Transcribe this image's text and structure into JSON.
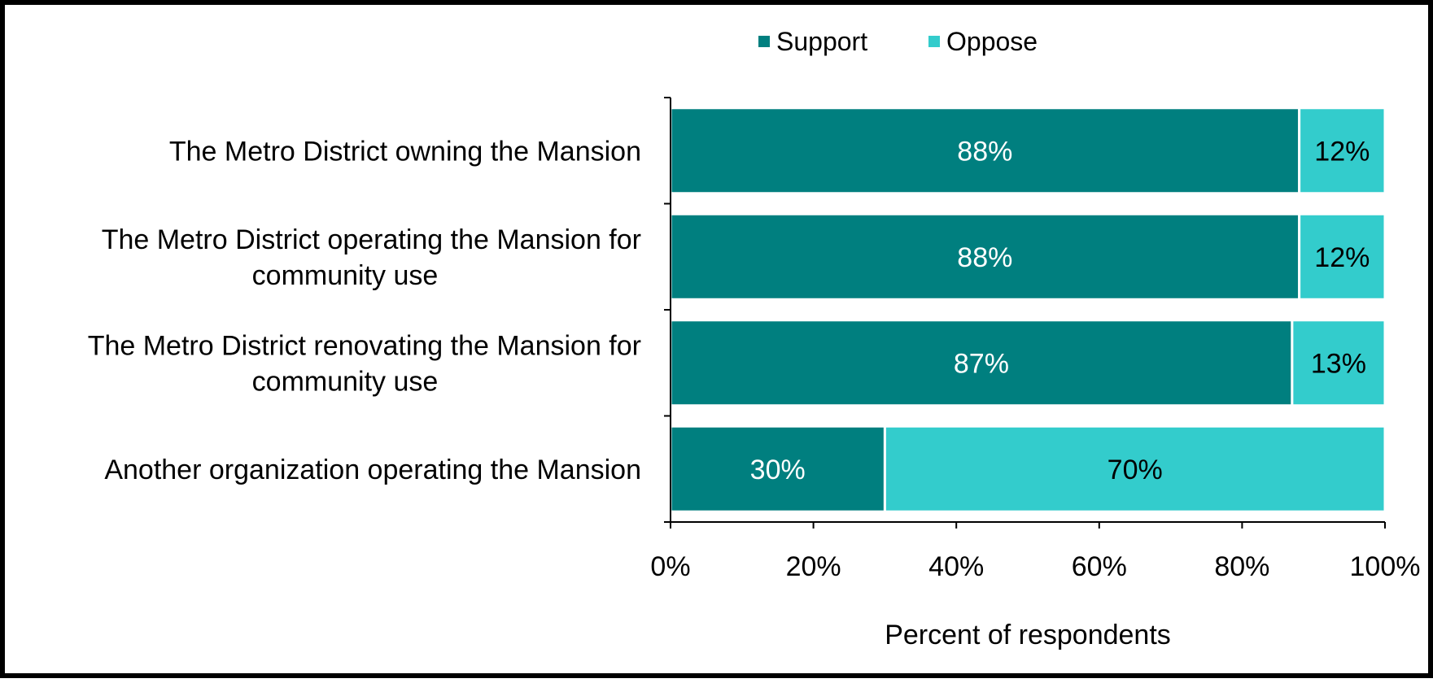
{
  "chart_data": {
    "type": "bar",
    "orientation": "horizontal",
    "stacked": true,
    "categories": [
      [
        "The Metro District owning the Mansion"
      ],
      [
        "The Metro District operating the Mansion for",
        "community use"
      ],
      [
        "The Metro District renovating the Mansion for",
        "community use"
      ],
      [
        "Another organization operating the Mansion"
      ]
    ],
    "series": [
      {
        "name": "Support",
        "color": "#007f7f",
        "label_color": "#ffffff",
        "values": [
          88,
          88,
          87,
          30
        ],
        "labels": [
          "88%",
          "88%",
          "87%",
          "30%"
        ]
      },
      {
        "name": "Oppose",
        "color": "#33cccc",
        "label_color": "#000000",
        "values": [
          12,
          12,
          13,
          70
        ],
        "labels": [
          "12%",
          "12%",
          "13%",
          "70%"
        ]
      }
    ],
    "xlabel": "Percent of respondents",
    "xlim": [
      0,
      100
    ],
    "xticks": [
      0,
      20,
      40,
      60,
      80,
      100
    ],
    "xtick_labels": [
      "0%",
      "20%",
      "40%",
      "60%",
      "80%",
      "100%"
    ],
    "legend_position": "top-center",
    "grid": false
  }
}
